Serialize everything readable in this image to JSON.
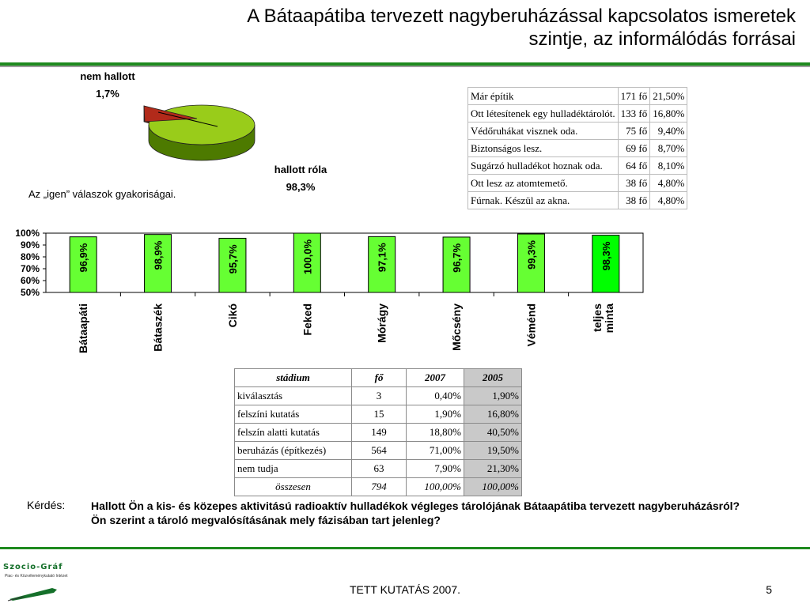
{
  "title": {
    "line1": "A Bátaapátiba tervezett nagyberuházással kapcsolatos ismeretek",
    "line2": "szintje, az informálódás forrásai"
  },
  "pie": {
    "slices": [
      {
        "label": "nem hallott",
        "value_label": "1,7%",
        "value": 1.7,
        "color": "#b22a1a"
      },
      {
        "label": "hallott róla",
        "value_label": "98,3%",
        "value": 98.3,
        "color": "#99cc1a"
      }
    ]
  },
  "bar_caption": "Az „igen” válaszok gyakoriságai.",
  "info_table": {
    "rows": [
      {
        "text": "Már építik",
        "count": "171 fő",
        "pct": "21,50%"
      },
      {
        "text": "Ott létesítenek egy hulladéktárolót.",
        "count": "133 fő",
        "pct": "16,80%"
      },
      {
        "text": "Védőruhákat visznek oda.",
        "count": "75 fő",
        "pct": "9,40%"
      },
      {
        "text": "Biztonságos lesz.",
        "count": "69 fő",
        "pct": "8,70%"
      },
      {
        "text": "Sugárzó hulladékot hoznak oda.",
        "count": "64 fő",
        "pct": "8,10%"
      },
      {
        "text": "Ott lesz az atomtemető.",
        "count": "38 fő",
        "pct": "4,80%"
      },
      {
        "text": "Fúrnak. Készül az akna.",
        "count": "38 fő",
        "pct": "4,80%"
      }
    ]
  },
  "chart_data": [
    {
      "type": "pie",
      "labels": [
        "nem hallott",
        "hallott róla"
      ],
      "values": [
        1.7,
        98.3
      ],
      "value_labels": [
        "1,7%",
        "98,3%"
      ]
    },
    {
      "type": "bar",
      "categories": [
        "Bátaapáti",
        "Bátaszék",
        "Cikó",
        "Feked",
        "Mórágy",
        "Mőcsény",
        "Véménd",
        "teljes minta"
      ],
      "values": [
        96.9,
        98.9,
        95.7,
        100.0,
        97.1,
        96.7,
        99.3,
        98.3
      ],
      "value_labels": [
        "96,9%",
        "98,9%",
        "95,7%",
        "100,0%",
        "97,1%",
        "96,7%",
        "99,3%",
        "98,3%"
      ],
      "ylim": [
        50,
        100
      ],
      "yticks": [
        "100%",
        "90%",
        "80%",
        "70%",
        "60%",
        "50%"
      ],
      "bar_color": "#66ff33",
      "highlight_color": "#00ff00"
    }
  ],
  "stage_table": {
    "headers": [
      "stádium",
      "fő",
      "2007",
      "2005"
    ],
    "rows": [
      [
        "kiválasztás",
        "3",
        "0,40%",
        "1,90%"
      ],
      [
        "felszíni kutatás",
        "15",
        "1,90%",
        "16,80%"
      ],
      [
        "felszín alatti kutatás",
        "149",
        "18,80%",
        "40,50%"
      ],
      [
        "beruházás (építkezés)",
        "564",
        "71,00%",
        "19,50%"
      ],
      [
        "nem tudja",
        "63",
        "7,90%",
        "21,30%"
      ]
    ],
    "total": [
      "összesen",
      "794",
      "100,00%",
      "100,00%"
    ]
  },
  "question": {
    "label": "Kérdés:",
    "line1": "Hallott Ön a kis- és közepes aktivitású radioaktív hulladékok végleges tárolójának Bátaapátiba tervezett nagyberuházásról?",
    "line2": "Ön szerint a tároló megvalósításának mely fázisában tart jelenleg?"
  },
  "footer": {
    "text": "TETT KUTATÁS 2007.",
    "page": "5"
  },
  "logo": {
    "name": "Szocio-Gráf",
    "subtitle": "Piac- és Közvéleménykutató Intézet"
  },
  "colors": {
    "accent_green": "#1e8a1e",
    "pie_top": "#99cc1a",
    "pie_side": "#4d7a00",
    "pie_red": "#b22a1a"
  }
}
